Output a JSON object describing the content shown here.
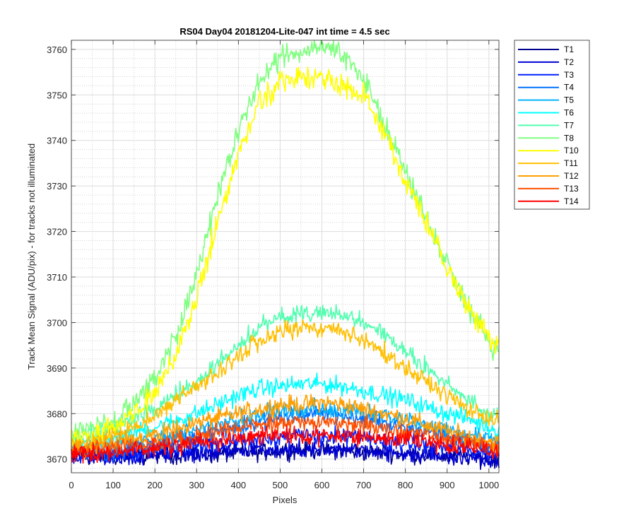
{
  "chart_data": {
    "type": "line",
    "title": "RS04 Day04 20181204-Lite-047 int time = 4.5 sec",
    "xlabel": "Pixels",
    "ylabel": "Track Mean Signal (ADU/pix) - for tracks not illuminated",
    "xlim": [
      0,
      1024
    ],
    "ylim": [
      3667,
      3762
    ],
    "x_ticks": [
      0,
      100,
      200,
      300,
      400,
      500,
      600,
      700,
      800,
      900,
      1000
    ],
    "y_ticks": [
      3670,
      3680,
      3690,
      3700,
      3710,
      3720,
      3730,
      3740,
      3750,
      3760
    ],
    "grid": "major and minor",
    "legend_position": "outside-right",
    "x": [
      0,
      50,
      100,
      150,
      200,
      250,
      300,
      350,
      400,
      450,
      500,
      550,
      600,
      650,
      700,
      750,
      800,
      850,
      900,
      950,
      1000,
      1023
    ],
    "series": [
      {
        "name": "T1",
        "color": "#00008f",
        "values": [
          3671,
          3670.5,
          3670.5,
          3670.5,
          3671,
          3671,
          3671,
          3671,
          3671.5,
          3671.5,
          3672,
          3672,
          3672,
          3672,
          3671.5,
          3671.5,
          3671,
          3671,
          3670.5,
          3670.5,
          3670,
          3670
        ]
      },
      {
        "name": "T2",
        "color": "#0000d6",
        "values": [
          3671,
          3670.5,
          3670.5,
          3670.5,
          3671,
          3671,
          3671,
          3671.5,
          3672,
          3672,
          3672,
          3672,
          3672.5,
          3672,
          3672,
          3671.5,
          3671,
          3671,
          3670.5,
          3670.5,
          3670,
          3670
        ]
      },
      {
        "name": "T3",
        "color": "#0020ff",
        "values": [
          3671.5,
          3671,
          3671,
          3671.5,
          3672,
          3672.5,
          3673,
          3673.5,
          3674,
          3674.5,
          3675,
          3675,
          3675,
          3675,
          3674.5,
          3674,
          3673.5,
          3673,
          3672.5,
          3672,
          3671.5,
          3671.5
        ]
      },
      {
        "name": "T4",
        "color": "#0070ff",
        "values": [
          3672,
          3672,
          3672,
          3672.5,
          3673,
          3674,
          3675,
          3676,
          3677,
          3678,
          3679,
          3679.5,
          3680,
          3679.5,
          3679,
          3678,
          3677,
          3676,
          3675,
          3674,
          3673,
          3672.5
        ]
      },
      {
        "name": "T5",
        "color": "#00b0ff",
        "values": [
          3672.5,
          3672.5,
          3673,
          3673.5,
          3674.5,
          3675.5,
          3676.5,
          3677.5,
          3678.5,
          3679.5,
          3680.5,
          3681,
          3681,
          3681,
          3680.5,
          3679.5,
          3678.5,
          3677.5,
          3676.5,
          3675.5,
          3674.5,
          3674
        ]
      },
      {
        "name": "T6",
        "color": "#00ffff",
        "values": [
          3673.5,
          3674,
          3675,
          3676,
          3677,
          3678.5,
          3680,
          3682,
          3684,
          3685.5,
          3686,
          3686.5,
          3686.5,
          3686,
          3685,
          3684,
          3683,
          3681.5,
          3680,
          3679,
          3677,
          3676
        ]
      },
      {
        "name": "T7",
        "color": "#50ffaf",
        "values": [
          3675,
          3675.5,
          3677,
          3679,
          3681,
          3684,
          3687,
          3691,
          3695,
          3699,
          3701,
          3702,
          3702,
          3701.5,
          3700,
          3697.5,
          3694,
          3690,
          3686,
          3683,
          3680,
          3678.5
        ]
      },
      {
        "name": "T8",
        "color": "#7fff7f",
        "values": [
          3675.5,
          3677,
          3678.5,
          3682,
          3688,
          3697,
          3711,
          3727,
          3742,
          3753,
          3758,
          3760,
          3761,
          3759,
          3753,
          3744,
          3733,
          3723,
          3713,
          3704,
          3696,
          3693
        ]
      },
      {
        "name": "T10",
        "color": "#ffff00",
        "values": [
          3674,
          3675,
          3677,
          3680,
          3685,
          3693,
          3705,
          3722,
          3737,
          3748,
          3753,
          3754,
          3754,
          3752,
          3750,
          3742,
          3731,
          3722,
          3712,
          3703,
          3697,
          3695
        ]
      },
      {
        "name": "T11",
        "color": "#ffbf00",
        "values": [
          3673.5,
          3674,
          3675,
          3677,
          3679.5,
          3683,
          3686,
          3689,
          3693,
          3696,
          3698,
          3699,
          3699,
          3698,
          3696,
          3693.5,
          3690,
          3687,
          3684,
          3681,
          3679,
          3678.5
        ]
      },
      {
        "name": "T12",
        "color": "#ff9f00",
        "values": [
          3672.5,
          3673,
          3673.5,
          3674.5,
          3675.5,
          3676.5,
          3678,
          3679,
          3680,
          3681,
          3682,
          3682,
          3682.5,
          3682,
          3681,
          3680,
          3679,
          3677.5,
          3676,
          3675,
          3674,
          3673.5
        ]
      },
      {
        "name": "T13",
        "color": "#ff5000",
        "values": [
          3672,
          3672,
          3672,
          3673,
          3673.5,
          3674.5,
          3675,
          3676,
          3677,
          3677.5,
          3678,
          3678,
          3678,
          3678,
          3677.5,
          3677,
          3676,
          3675.5,
          3674.5,
          3674,
          3673,
          3672.5
        ]
      },
      {
        "name": "T14",
        "color": "#ff0000",
        "values": [
          3671.5,
          3671.5,
          3671.5,
          3672,
          3672.5,
          3673,
          3673.5,
          3674,
          3674.5,
          3675,
          3675,
          3675,
          3675,
          3675,
          3675,
          3674.5,
          3674,
          3673.5,
          3673,
          3672.5,
          3672,
          3671.5
        ]
      }
    ]
  }
}
